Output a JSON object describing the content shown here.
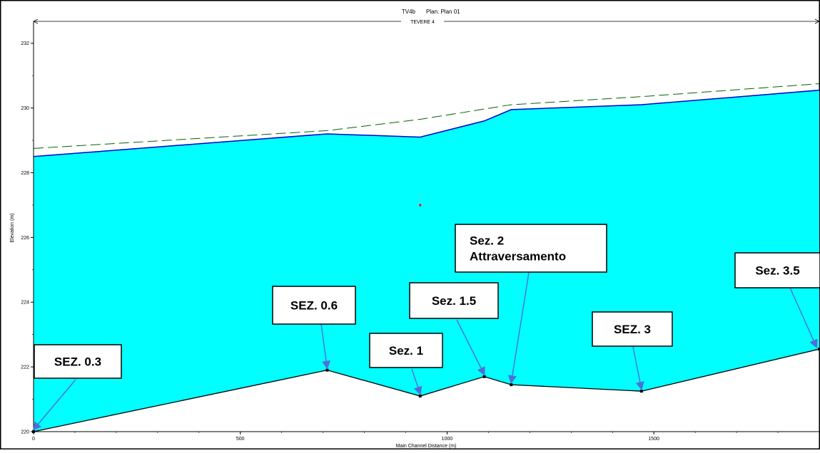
{
  "chart_data": {
    "type": "area",
    "title": "TV4b",
    "subtitle": "Plan: Plan 01",
    "reach_label": "TEVERE 4",
    "xlabel": "Main Channel Distance (m)",
    "ylabel": "Elevation (m)",
    "xlim": [
      0,
      1900
    ],
    "ylim": [
      220,
      232.5
    ],
    "xticks": [
      0,
      500,
      1000,
      1500
    ],
    "yticks": [
      220,
      222,
      224,
      226,
      228,
      230,
      232
    ],
    "grid": false,
    "series": [
      {
        "role": "ground",
        "color": "#000000",
        "x": [
          0,
          710,
          935,
          1090,
          1155,
          1470,
          1900
        ],
        "y": [
          220.0,
          221.9,
          221.1,
          221.7,
          221.45,
          221.25,
          222.55
        ]
      },
      {
        "role": "water-surface",
        "color": "#0000cc",
        "fill": "#00ffff",
        "x": [
          0,
          710,
          935,
          1090,
          1155,
          1470,
          1900
        ],
        "y": [
          228.5,
          229.2,
          229.1,
          229.6,
          229.95,
          230.1,
          230.55
        ]
      },
      {
        "role": "energy-grade",
        "color": "#006400",
        "dashed": true,
        "x": [
          0,
          710,
          935,
          1155,
          1470,
          1900
        ],
        "y": [
          228.75,
          229.3,
          229.65,
          230.1,
          230.35,
          230.75
        ]
      }
    ],
    "marker_point": {
      "x": 935,
      "y": 227.0,
      "color": "#ff0000"
    },
    "annotations": [
      {
        "label": "SEZ. 0.3",
        "x": 0,
        "y": 220.0
      },
      {
        "label": "SEZ. 0.6",
        "x": 710,
        "y": 221.9
      },
      {
        "label": "Sez. 1",
        "x": 935,
        "y": 221.1
      },
      {
        "label": "Sez. 1.5",
        "x": 1090,
        "y": 221.7
      },
      {
        "label": "Sez. 2\nAttraversamento",
        "x": 1155,
        "y": 221.45
      },
      {
        "label": "SEZ. 3",
        "x": 1470,
        "y": 221.25
      },
      {
        "label": "Sez. 3.5",
        "x": 1900,
        "y": 222.55
      }
    ]
  }
}
